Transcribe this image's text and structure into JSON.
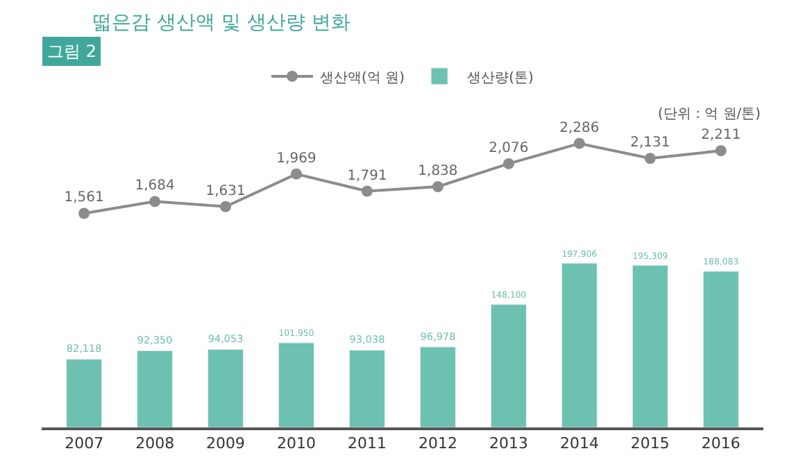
{
  "chart_data": [
    {
      "type": "line",
      "title": "떫은감 생산액 및 생산량 변화",
      "annotations": [
        "그림 2",
        "(단위 : 억 원/톤)"
      ],
      "categories": [
        "2007",
        "2008",
        "2009",
        "2010",
        "2011",
        "2012",
        "2013",
        "2014",
        "2015",
        "2016"
      ],
      "series": [
        {
          "name": "생산액(억 원)",
          "color": "#8c8c8c",
          "values": [
            1561,
            1684,
            1631,
            1969,
            1791,
            1838,
            2076,
            2286,
            2131,
            2211
          ],
          "value_labels": [
            "1,561",
            "1,684",
            "1,631",
            "1,969",
            "1,791",
            "1,838",
            "2,076",
            "2,286",
            "2,131",
            "2,211"
          ]
        }
      ],
      "marker": "circle",
      "legend": "top",
      "tick_labels": false
    },
    {
      "type": "bar",
      "categories": [
        "2007",
        "2008",
        "2009",
        "2010",
        "2011",
        "2012",
        "2013",
        "2014",
        "2015",
        "2016"
      ],
      "series": [
        {
          "name": "생산량(톤)",
          "color": "#6dc1b1",
          "values": [
            82118,
            92350,
            94053,
            101950,
            93038,
            96978,
            148100,
            197906,
            195309,
            188083
          ],
          "value_labels": [
            "82,118",
            "92,350",
            "94,053",
            "101,950",
            "93,038",
            "96,978",
            "148,100",
            "197,906",
            "195,309",
            "188,083"
          ]
        }
      ],
      "legend": "top",
      "tick_labels": "x"
    }
  ]
}
